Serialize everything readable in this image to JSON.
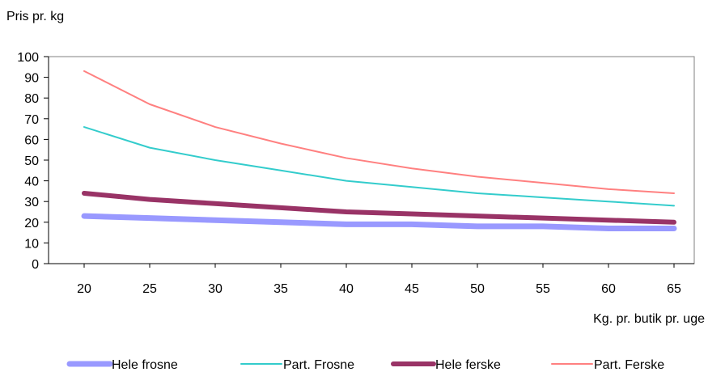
{
  "chart_data": {
    "type": "line",
    "ylabel": "Pris pr. kg",
    "xlabel": "Kg. pr. butik pr. uge",
    "x": [
      20,
      25,
      30,
      35,
      40,
      45,
      50,
      55,
      60,
      65
    ],
    "ylim": [
      0,
      100
    ],
    "yticks": [
      0,
      10,
      20,
      30,
      40,
      50,
      60,
      70,
      80,
      90,
      100
    ],
    "grid": false,
    "legend_position": "bottom",
    "series": [
      {
        "name": "Hele frosne",
        "color": "#9999ff",
        "values": [
          23,
          22,
          21,
          20,
          19,
          19,
          18,
          18,
          17,
          17
        ]
      },
      {
        "name": "Part. Frosne",
        "color": "#33cccc",
        "values": [
          66,
          56,
          50,
          45,
          40,
          37,
          34,
          32,
          30,
          28
        ]
      },
      {
        "name": "Hele ferske",
        "color": "#993366",
        "values": [
          34,
          31,
          29,
          27,
          25,
          24,
          23,
          22,
          21,
          20
        ]
      },
      {
        "name": "Part. Ferske",
        "color": "#ff8080",
        "values": [
          93,
          77,
          66,
          58,
          51,
          46,
          42,
          39,
          36,
          34
        ]
      }
    ]
  }
}
